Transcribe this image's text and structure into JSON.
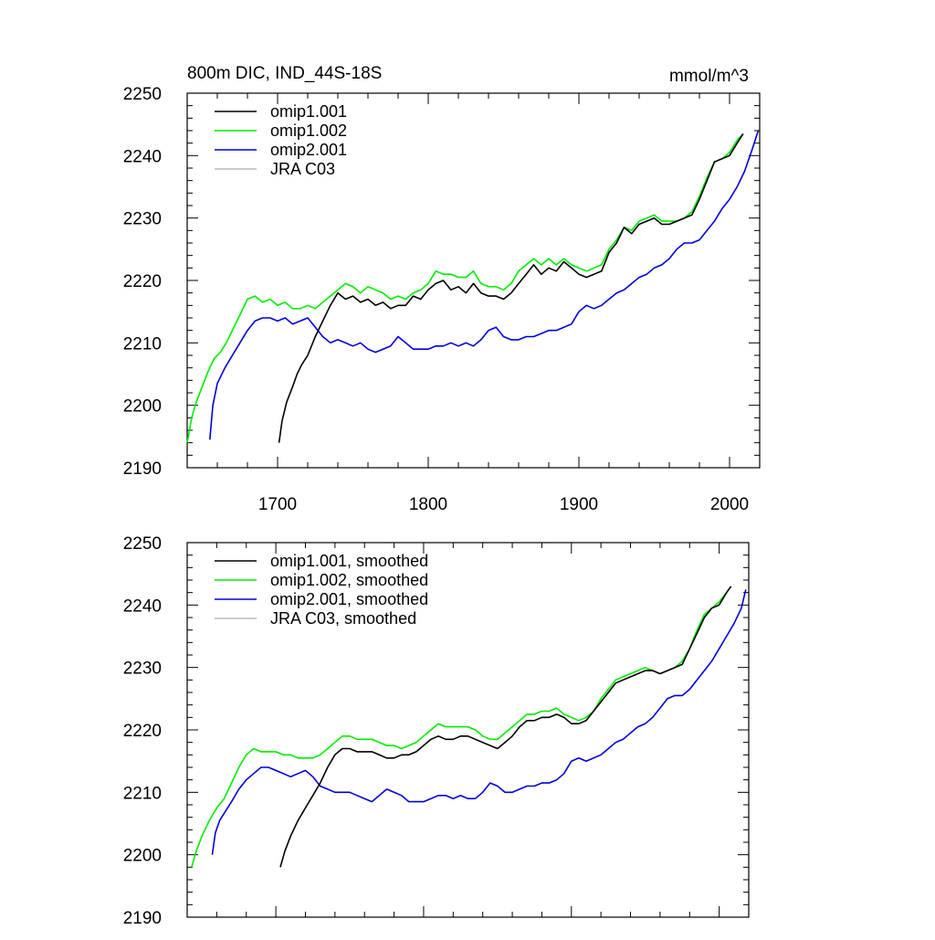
{
  "chart_data": [
    {
      "type": "line",
      "title": "800m DIC, IND_44S-18S",
      "units": "mmol/m^3",
      "xlim": [
        1640,
        2020
      ],
      "ylim": [
        2190,
        2250
      ],
      "xticks": [
        1700,
        1800,
        1900,
        2000
      ],
      "yticks": [
        2190,
        2200,
        2210,
        2220,
        2230,
        2240,
        2250
      ],
      "legend_position": "top-left",
      "grid": false,
      "series": [
        {
          "name": "omip1.001",
          "color": "#000000",
          "x": [
            1701,
            1703,
            1706,
            1710,
            1713,
            1716,
            1720,
            1725,
            1730,
            1735,
            1740,
            1745,
            1750,
            1755,
            1760,
            1765,
            1770,
            1775,
            1780,
            1785,
            1790,
            1795,
            1800,
            1805,
            1810,
            1815,
            1820,
            1825,
            1830,
            1835,
            1840,
            1845,
            1850,
            1855,
            1860,
            1865,
            1870,
            1875,
            1880,
            1885,
            1890,
            1895,
            1900,
            1905,
            1910,
            1915,
            1920,
            1925,
            1930,
            1935,
            1940,
            1945,
            1950,
            1955,
            1960,
            1965,
            1970,
            1975,
            1980,
            1985,
            1990,
            1995,
            2000,
            2005,
            2009
          ],
          "y": [
            2194,
            2197.5,
            2200.5,
            2203,
            2205,
            2206.5,
            2208,
            2211,
            2213.5,
            2216,
            2218,
            2217,
            2217.5,
            2216.5,
            2217,
            2216,
            2216.5,
            2215.5,
            2216,
            2216,
            2217.5,
            2217,
            2218.5,
            2219.5,
            2220,
            2218.5,
            2219,
            2218,
            2219.5,
            2218,
            2217.5,
            2217.5,
            2217,
            2218,
            2219.5,
            2221,
            2222.5,
            2221,
            2222,
            2221.5,
            2223,
            2222,
            2221,
            2220.5,
            2221,
            2221.5,
            2224.5,
            2226,
            2228.5,
            2227.5,
            2229,
            2229.5,
            2230,
            2229,
            2229,
            2229.5,
            2230,
            2230.5,
            2233,
            2236,
            2239,
            2239.5,
            2240,
            2242,
            2243.5
          ]
        },
        {
          "name": "omip1.002",
          "color": "#00ee00",
          "x": [
            1640,
            1643,
            1646,
            1650,
            1654,
            1658,
            1662,
            1666,
            1670,
            1675,
            1680,
            1685,
            1690,
            1695,
            1700,
            1705,
            1710,
            1715,
            1720,
            1725,
            1730,
            1735,
            1740,
            1745,
            1750,
            1755,
            1760,
            1765,
            1770,
            1775,
            1780,
            1785,
            1790,
            1795,
            1800,
            1805,
            1810,
            1815,
            1820,
            1825,
            1830,
            1835,
            1840,
            1845,
            1850,
            1855,
            1860,
            1865,
            1870,
            1875,
            1880,
            1885,
            1890,
            1895,
            1900,
            1905,
            1910,
            1915,
            1920,
            1925,
            1930,
            1935,
            1940,
            1945,
            1950,
            1955,
            1960,
            1965,
            1970,
            1975,
            1980,
            1985,
            1990,
            1995,
            2000,
            2005,
            2009
          ],
          "y": [
            2194,
            2198,
            2200.5,
            2203,
            2205.5,
            2207.5,
            2208.5,
            2210,
            2212,
            2214.5,
            2217,
            2217.5,
            2216.5,
            2217,
            2216,
            2216.5,
            2215.5,
            2215.5,
            2216,
            2215.5,
            2216.5,
            2217.5,
            2218.5,
            2219.5,
            2219,
            2218,
            2219,
            2218.5,
            2218,
            2217,
            2217.5,
            2217,
            2218,
            2218.5,
            2219.5,
            2221.5,
            2221,
            2221,
            2220.5,
            2220.5,
            2221.5,
            2219.5,
            2219,
            2219,
            2218.5,
            2219.5,
            2221.5,
            2222.5,
            2223.5,
            2222.5,
            2223.5,
            2222.5,
            2223.5,
            2222.5,
            2222,
            2221.5,
            2222,
            2222.5,
            2225,
            2226.5,
            2228.5,
            2228,
            2229.5,
            2230,
            2230.5,
            2229.5,
            2229.5,
            2229.5,
            2230,
            2231,
            2233.5,
            2236.5,
            2239,
            2239.5,
            2240.5,
            2242.5,
            2243.5
          ]
        },
        {
          "name": "omip2.001",
          "color": "#0000dd",
          "x": [
            1655,
            1657,
            1660,
            1665,
            1670,
            1675,
            1680,
            1685,
            1690,
            1695,
            1700,
            1705,
            1710,
            1715,
            1720,
            1725,
            1730,
            1735,
            1740,
            1745,
            1750,
            1755,
            1760,
            1765,
            1770,
            1775,
            1780,
            1785,
            1790,
            1795,
            1800,
            1805,
            1810,
            1815,
            1820,
            1825,
            1830,
            1835,
            1840,
            1845,
            1850,
            1855,
            1860,
            1865,
            1870,
            1875,
            1880,
            1885,
            1890,
            1895,
            1900,
            1905,
            1910,
            1915,
            1920,
            1925,
            1930,
            1935,
            1940,
            1945,
            1950,
            1955,
            1960,
            1965,
            1970,
            1975,
            1980,
            1985,
            1990,
            1995,
            2000,
            2005,
            2010,
            2015,
            2019
          ],
          "y": [
            2194.5,
            2200,
            2203.5,
            2206,
            2208,
            2210,
            2212,
            2213.5,
            2214,
            2214,
            2213.5,
            2214,
            2213,
            2213.5,
            2214,
            2212.5,
            2211,
            2210,
            2210.5,
            2210,
            2209.5,
            2210,
            2209,
            2208.5,
            2209,
            2209.5,
            2211,
            2210,
            2209,
            2209,
            2209,
            2209.5,
            2209.5,
            2210,
            2209.5,
            2210,
            2209.5,
            2210.5,
            2212,
            2212.5,
            2211,
            2210.5,
            2210.5,
            2211,
            2211,
            2211.5,
            2212,
            2212,
            2212.5,
            2213,
            2215,
            2216,
            2215.5,
            2216,
            2217,
            2218,
            2218.5,
            2219.5,
            2220.5,
            2221,
            2222,
            2222.5,
            2223.5,
            2225,
            2226,
            2226,
            2226.5,
            2228,
            2229.5,
            2231.5,
            2233,
            2235,
            2237.5,
            2241,
            2244
          ]
        },
        {
          "name": "JRA C03",
          "color": "#bbbbbb",
          "x": [],
          "y": []
        }
      ]
    },
    {
      "type": "line",
      "title": "",
      "units": "",
      "xlim": [
        1640,
        2020
      ],
      "ylim": [
        2190,
        2250
      ],
      "xticks": [
        1700,
        1800,
        1900,
        2000
      ],
      "yticks": [
        2190,
        2200,
        2210,
        2220,
        2230,
        2240,
        2250
      ],
      "legend_position": "top-left",
      "grid": false,
      "series": [
        {
          "name": "omip1.001, smoothed",
          "color": "#000000",
          "x": [
            1703,
            1706,
            1710,
            1715,
            1720,
            1725,
            1730,
            1735,
            1740,
            1745,
            1750,
            1755,
            1760,
            1765,
            1770,
            1775,
            1780,
            1785,
            1790,
            1795,
            1800,
            1805,
            1810,
            1815,
            1820,
            1825,
            1830,
            1835,
            1840,
            1845,
            1850,
            1855,
            1860,
            1865,
            1870,
            1875,
            1880,
            1885,
            1890,
            1895,
            1900,
            1905,
            1910,
            1915,
            1920,
            1925,
            1930,
            1935,
            1940,
            1945,
            1950,
            1955,
            1960,
            1965,
            1970,
            1975,
            1980,
            1985,
            1990,
            1995,
            2000,
            2005,
            2008
          ],
          "y": [
            2198,
            2200.5,
            2203,
            2205.5,
            2207.5,
            2209.5,
            2211.5,
            2214,
            2216,
            2217,
            2217,
            2216.5,
            2216.5,
            2216.5,
            2216,
            2215.5,
            2215.5,
            2216,
            2216,
            2216.5,
            2217.5,
            2218.5,
            2219,
            2218.5,
            2218.5,
            2219,
            2219,
            2218.5,
            2218,
            2217.5,
            2217,
            2218,
            2219,
            2220.5,
            2221.5,
            2221.5,
            2222,
            2222,
            2222.5,
            2222,
            2221,
            2221,
            2221.5,
            2223,
            2224.5,
            2226,
            2227.5,
            2228,
            2228.5,
            2229,
            2229.5,
            2229.5,
            2229,
            2229.5,
            2230,
            2230.5,
            2233,
            2235.5,
            2238,
            2239.5,
            2240,
            2242,
            2243
          ]
        },
        {
          "name": "omip1.002, smoothed",
          "color": "#00ee00",
          "x": [
            1643,
            1646,
            1650,
            1655,
            1660,
            1665,
            1670,
            1675,
            1680,
            1685,
            1690,
            1695,
            1700,
            1705,
            1710,
            1715,
            1720,
            1725,
            1730,
            1735,
            1740,
            1745,
            1750,
            1755,
            1760,
            1765,
            1770,
            1775,
            1780,
            1785,
            1790,
            1795,
            1800,
            1805,
            1810,
            1815,
            1820,
            1825,
            1830,
            1835,
            1840,
            1845,
            1850,
            1855,
            1860,
            1865,
            1870,
            1875,
            1880,
            1885,
            1890,
            1895,
            1900,
            1905,
            1910,
            1915,
            1920,
            1925,
            1930,
            1935,
            1940,
            1945,
            1950,
            1955,
            1960,
            1965,
            1970,
            1975,
            1980,
            1985,
            1990,
            1995,
            2000,
            2005,
            2008
          ],
          "y": [
            2198,
            2200.5,
            2203,
            2205.5,
            2207.5,
            2209,
            2211.5,
            2214,
            2216,
            2217,
            2216.5,
            2216.5,
            2216.5,
            2216,
            2216,
            2215.5,
            2215.5,
            2215.5,
            2216,
            2217,
            2218,
            2219,
            2219,
            2218.5,
            2218.5,
            2218.5,
            2218,
            2217.5,
            2217.5,
            2217,
            2217.5,
            2218,
            2219,
            2220,
            2221,
            2220.5,
            2220.5,
            2220.5,
            2220.5,
            2220,
            2219,
            2218.5,
            2218.5,
            2219.5,
            2220.5,
            2221.5,
            2222.5,
            2222.5,
            2223,
            2223,
            2223.5,
            2222.5,
            2222,
            2221.5,
            2222,
            2223,
            2225,
            2226.5,
            2228,
            2228.5,
            2229,
            2229.5,
            2230,
            2229.5,
            2229,
            2229.5,
            2230,
            2231,
            2233,
            2236,
            2238.5,
            2239.5,
            2240.5,
            2242,
            2243
          ]
        },
        {
          "name": "omip2.001, smoothed",
          "color": "#0000dd",
          "x": [
            1657,
            1659,
            1662,
            1666,
            1670,
            1675,
            1680,
            1685,
            1690,
            1695,
            1700,
            1705,
            1710,
            1715,
            1720,
            1725,
            1730,
            1735,
            1740,
            1745,
            1750,
            1755,
            1760,
            1765,
            1770,
            1775,
            1780,
            1785,
            1790,
            1795,
            1800,
            1805,
            1810,
            1815,
            1820,
            1825,
            1830,
            1835,
            1840,
            1845,
            1850,
            1855,
            1860,
            1865,
            1870,
            1875,
            1880,
            1885,
            1890,
            1895,
            1900,
            1905,
            1910,
            1915,
            1920,
            1925,
            1930,
            1935,
            1940,
            1945,
            1950,
            1955,
            1960,
            1965,
            1970,
            1975,
            1980,
            1985,
            1990,
            1995,
            2000,
            2005,
            2010,
            2015,
            2018
          ],
          "y": [
            2200,
            2203.5,
            2205.5,
            2207,
            2208.5,
            2210.5,
            2212,
            2213,
            2214,
            2214,
            2213.5,
            2213,
            2212.5,
            2213,
            2213.5,
            2212.5,
            2211,
            2210.5,
            2210,
            2210,
            2210,
            2209.5,
            2209,
            2208.5,
            2209.5,
            2210.5,
            2210,
            2209.5,
            2208.5,
            2208.5,
            2208.5,
            2209,
            2209.5,
            2209.5,
            2209,
            2209.5,
            2209,
            2209,
            2210,
            2211.5,
            2211,
            2210,
            2210,
            2210.5,
            2211,
            2211,
            2211.5,
            2211.5,
            2212,
            2213,
            2215,
            2215.5,
            2215,
            2215.5,
            2216,
            2217,
            2218,
            2218.5,
            2219.5,
            2220.5,
            2221,
            2222,
            2223.5,
            2225,
            2225.5,
            2225.5,
            2226.5,
            2228,
            2229.5,
            2231,
            2233,
            2235,
            2237,
            2239.5,
            2242.5
          ]
        },
        {
          "name": "JRA C03, smoothed",
          "color": "#bbbbbb",
          "x": [],
          "y": []
        }
      ]
    }
  ]
}
